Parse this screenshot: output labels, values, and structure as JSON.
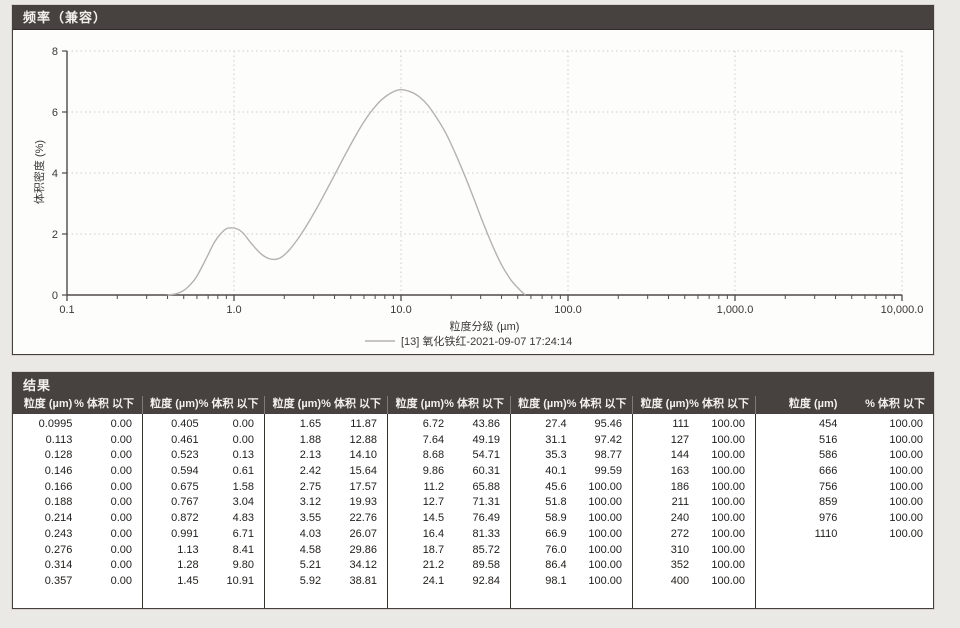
{
  "chart_panel": {
    "title": "频率（兼容）"
  },
  "chart_data": {
    "type": "line",
    "title": "频率（兼容）",
    "xlabel": "粒度分级 (µm)",
    "ylabel": "体积密度 (%)",
    "x_scale": "log",
    "xlim": [
      0.1,
      10000
    ],
    "ylim": [
      0,
      8
    ],
    "x_tick_values": [
      0.1,
      1,
      10,
      100,
      1000,
      10000
    ],
    "x_tick_labels": [
      "0.1",
      "1.0",
      "10.0",
      "100.0",
      "1,000.0",
      "10,000.0"
    ],
    "y_ticks": [
      0,
      2,
      4,
      6,
      8
    ],
    "grid": "dotted",
    "legend_position": "bottom",
    "legend_label": "[13] 氧化铁红-2021-09-07 17:24:14",
    "series": [
      {
        "name": "[13] 氧化铁红-2021-09-07 17:24:14",
        "color": "#b5b2ae",
        "x": [
          0.4,
          0.45,
          0.5,
          0.55,
          0.6,
          0.675,
          0.767,
          0.872,
          0.95,
          1.05,
          1.13,
          1.28,
          1.45,
          1.65,
          1.88,
          2.13,
          2.42,
          2.75,
          3.12,
          3.55,
          4.03,
          4.58,
          5.21,
          5.92,
          6.72,
          7.64,
          8.68,
          9.86,
          11.2,
          12.7,
          14.5,
          16.4,
          18.7,
          21.2,
          24.1,
          27.4,
          31.1,
          35.3,
          40.1,
          45.6,
          51.8,
          55.5
        ],
        "y": [
          0,
          0.04,
          0.15,
          0.35,
          0.62,
          1.15,
          1.75,
          2.12,
          2.2,
          2.16,
          2.04,
          1.67,
          1.35,
          1.18,
          1.21,
          1.46,
          1.85,
          2.32,
          2.83,
          3.4,
          3.97,
          4.55,
          5.11,
          5.63,
          6.06,
          6.4,
          6.62,
          6.73,
          6.68,
          6.52,
          6.22,
          5.8,
          5.27,
          4.63,
          3.91,
          3.14,
          2.35,
          1.62,
          0.98,
          0.49,
          0.15,
          0.0
        ]
      }
    ]
  },
  "results_table": {
    "title": "结果",
    "column_headers": {
      "size": "粒度 (µm)",
      "pct": "% 体积 以下"
    },
    "groups": [
      {
        "rows": [
          [
            "0.0995",
            "0.00"
          ],
          [
            "0.113",
            "0.00"
          ],
          [
            "0.128",
            "0.00"
          ],
          [
            "0.146",
            "0.00"
          ],
          [
            "0.166",
            "0.00"
          ],
          [
            "0.188",
            "0.00"
          ],
          [
            "0.214",
            "0.00"
          ],
          [
            "0.243",
            "0.00"
          ],
          [
            "0.276",
            "0.00"
          ],
          [
            "0.314",
            "0.00"
          ],
          [
            "0.357",
            "0.00"
          ]
        ]
      },
      {
        "rows": [
          [
            "0.405",
            "0.00"
          ],
          [
            "0.461",
            "0.00"
          ],
          [
            "0.523",
            "0.13"
          ],
          [
            "0.594",
            "0.61"
          ],
          [
            "0.675",
            "1.58"
          ],
          [
            "0.767",
            "3.04"
          ],
          [
            "0.872",
            "4.83"
          ],
          [
            "0.991",
            "6.71"
          ],
          [
            "1.13",
            "8.41"
          ],
          [
            "1.28",
            "9.80"
          ],
          [
            "1.45",
            "10.91"
          ]
        ]
      },
      {
        "rows": [
          [
            "1.65",
            "11.87"
          ],
          [
            "1.88",
            "12.88"
          ],
          [
            "2.13",
            "14.10"
          ],
          [
            "2.42",
            "15.64"
          ],
          [
            "2.75",
            "17.57"
          ],
          [
            "3.12",
            "19.93"
          ],
          [
            "3.55",
            "22.76"
          ],
          [
            "4.03",
            "26.07"
          ],
          [
            "4.58",
            "29.86"
          ],
          [
            "5.21",
            "34.12"
          ],
          [
            "5.92",
            "38.81"
          ]
        ]
      },
      {
        "rows": [
          [
            "6.72",
            "43.86"
          ],
          [
            "7.64",
            "49.19"
          ],
          [
            "8.68",
            "54.71"
          ],
          [
            "9.86",
            "60.31"
          ],
          [
            "11.2",
            "65.88"
          ],
          [
            "12.7",
            "71.31"
          ],
          [
            "14.5",
            "76.49"
          ],
          [
            "16.4",
            "81.33"
          ],
          [
            "18.7",
            "85.72"
          ],
          [
            "21.2",
            "89.58"
          ],
          [
            "24.1",
            "92.84"
          ]
        ]
      },
      {
        "rows": [
          [
            "27.4",
            "95.46"
          ],
          [
            "31.1",
            "97.42"
          ],
          [
            "35.3",
            "98.77"
          ],
          [
            "40.1",
            "99.59"
          ],
          [
            "45.6",
            "100.00"
          ],
          [
            "51.8",
            "100.00"
          ],
          [
            "58.9",
            "100.00"
          ],
          [
            "66.9",
            "100.00"
          ],
          [
            "76.0",
            "100.00"
          ],
          [
            "86.4",
            "100.00"
          ],
          [
            "98.1",
            "100.00"
          ]
        ]
      },
      {
        "rows": [
          [
            "111",
            "100.00"
          ],
          [
            "127",
            "100.00"
          ],
          [
            "144",
            "100.00"
          ],
          [
            "163",
            "100.00"
          ],
          [
            "186",
            "100.00"
          ],
          [
            "211",
            "100.00"
          ],
          [
            "240",
            "100.00"
          ],
          [
            "272",
            "100.00"
          ],
          [
            "310",
            "100.00"
          ],
          [
            "352",
            "100.00"
          ],
          [
            "400",
            "100.00"
          ]
        ]
      },
      {
        "rows": [
          [
            "454",
            "100.00"
          ],
          [
            "516",
            "100.00"
          ],
          [
            "586",
            "100.00"
          ],
          [
            "666",
            "100.00"
          ],
          [
            "756",
            "100.00"
          ],
          [
            "859",
            "100.00"
          ],
          [
            "976",
            "100.00"
          ],
          [
            "1110",
            "100.00"
          ]
        ]
      }
    ]
  },
  "colors": {
    "page_bg": "#ebe9e5",
    "panel_bg": "#fdfdfc",
    "header_bar": "#474240",
    "header_text": "#f3f0ec",
    "border": "#45403c",
    "axis": "#4e4b48",
    "grid": "#cfccc8",
    "curve": "#b5b2ae",
    "text": "#3b3835"
  }
}
